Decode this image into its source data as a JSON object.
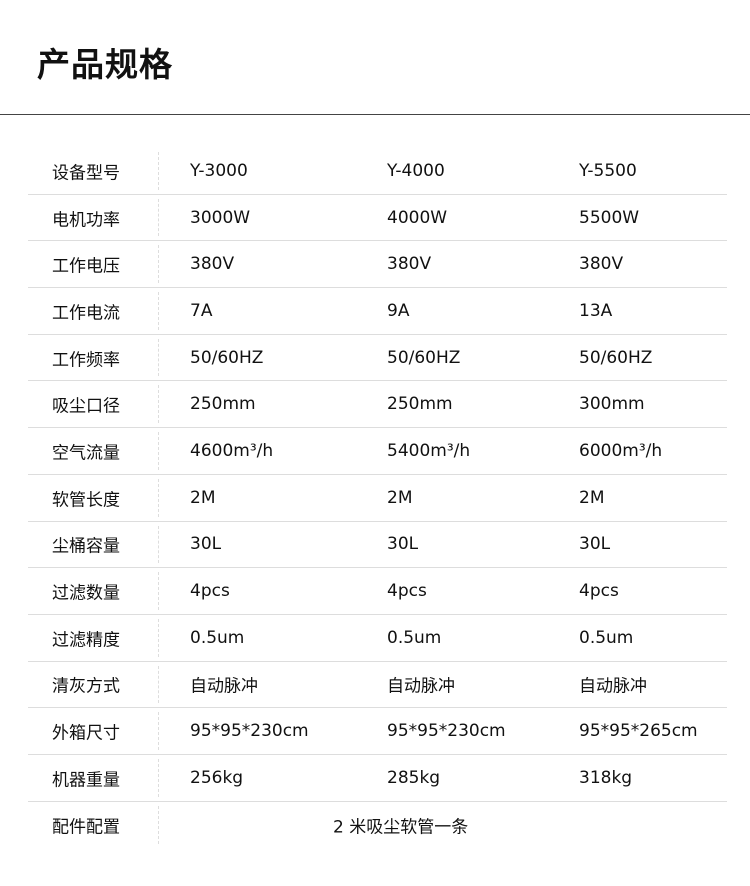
{
  "title": "产品规格",
  "rows": [
    {
      "label": "设备型号",
      "values": [
        "Y-3000",
        "Y-4000",
        "Y-5500"
      ]
    },
    {
      "label": "电机功率",
      "values": [
        "3000W",
        "4000W",
        "5500W"
      ]
    },
    {
      "label": "工作电压",
      "values": [
        "380V",
        "380V",
        "380V"
      ]
    },
    {
      "label": "工作电流",
      "values": [
        "7A",
        "9A",
        "13A"
      ]
    },
    {
      "label": "工作频率",
      "values": [
        "50/60HZ",
        "50/60HZ",
        "50/60HZ"
      ]
    },
    {
      "label": "吸尘口径",
      "values": [
        "250mm",
        "250mm",
        "300mm"
      ]
    },
    {
      "label": "空气流量",
      "values": [
        "4600m³/h",
        "5400m³/h",
        "6000m³/h"
      ]
    },
    {
      "label": "软管长度",
      "values": [
        "2M",
        "2M",
        "2M"
      ]
    },
    {
      "label": "尘桶容量",
      "values": [
        "30L",
        "30L",
        "30L"
      ]
    },
    {
      "label": "过滤数量",
      "values": [
        "4pcs",
        "4pcs",
        "4pcs"
      ]
    },
    {
      "label": "过滤精度",
      "values": [
        "0.5um",
        "0.5um",
        "0.5um"
      ]
    },
    {
      "label": "清灰方式",
      "values": [
        "自动脉冲",
        "自动脉冲",
        "自动脉冲"
      ]
    },
    {
      "label": "外箱尺寸",
      "values": [
        "95*95*230cm",
        "95*95*230cm",
        "95*95*265cm"
      ]
    },
    {
      "label": "机器重量",
      "values": [
        "256kg",
        "285kg",
        "318kg"
      ]
    }
  ],
  "accessory": {
    "label": "配件配置",
    "value": "2 米吸尘软管一条"
  }
}
